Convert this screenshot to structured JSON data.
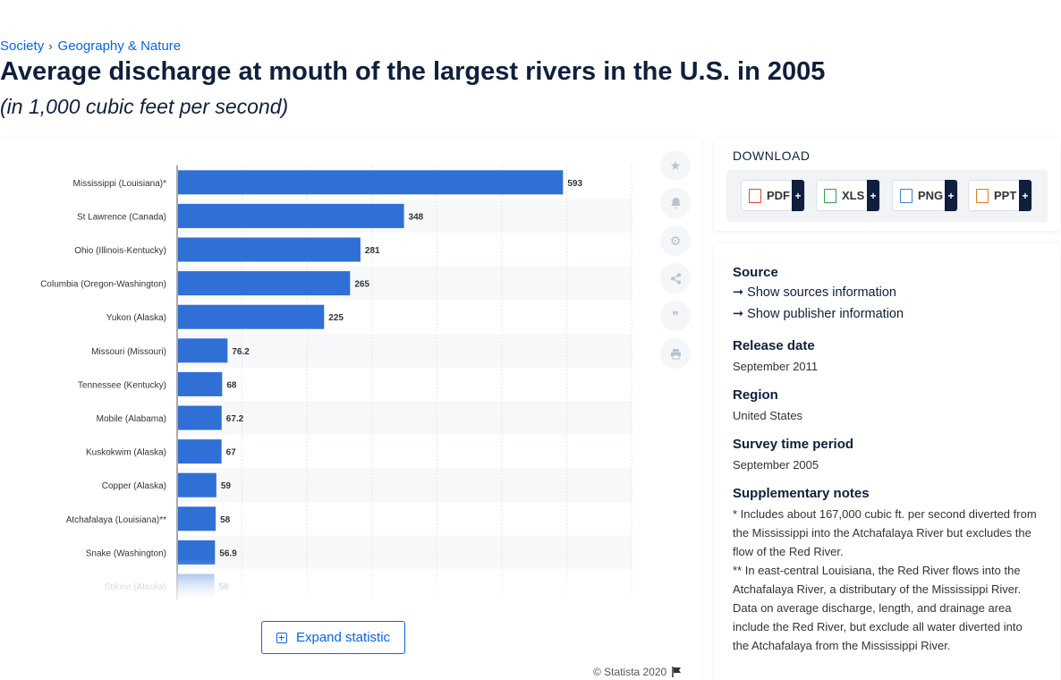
{
  "breadcrumb": {
    "items": [
      "Society",
      "Geography & Nature"
    ],
    "separator": "›"
  },
  "title": "Average discharge at mouth of the largest rivers in the U.S. in 2005",
  "subtitle": "(in 1,000 cubic feet per second)",
  "chart_data": {
    "type": "bar",
    "orientation": "horizontal",
    "categories": [
      "Mississippi (Louisiana)*",
      "St Lawrence (Canada)",
      "Ohio (Illinois-Kentucky)",
      "Columbia (Oregon-Washington)",
      "Yukon (Alaska)",
      "Missouri (Missouri)",
      "Tennessee (Kentucky)",
      "Mobile (Alabama)",
      "Kuskokwim (Alaska)",
      "Copper (Alaska)",
      "Atchafalaya (Louisiana)**",
      "Snake (Washington)",
      "Stikine (Alaska)"
    ],
    "values": [
      593,
      348,
      281,
      265,
      225,
      76.2,
      68,
      67.2,
      67,
      59,
      58,
      56.9,
      56
    ],
    "value_labels": [
      "593",
      "348",
      "281",
      "265",
      "225",
      "76.2",
      "68",
      "67.2",
      "67",
      "59",
      "58",
      "56.9",
      "56"
    ],
    "xlim": [
      0,
      700
    ],
    "grid": true,
    "bar_color": "#2f6fd6",
    "faded_last": true
  },
  "tools": {
    "icons": [
      "star-icon",
      "bell-icon",
      "gear-icon",
      "share-icon",
      "quote-icon",
      "print-icon"
    ]
  },
  "expand_label": "Expand statistic",
  "copyright": "© Statista 2020",
  "download": {
    "title": "DOWNLOAD",
    "buttons": [
      {
        "label": "PDF",
        "plus": "+",
        "color": "#e0443a"
      },
      {
        "label": "XLS",
        "plus": "+",
        "color": "#2e9b4e"
      },
      {
        "label": "PNG",
        "plus": "+",
        "color": "#3f7fd0"
      },
      {
        "label": "PPT",
        "plus": "+",
        "color": "#e07a2a"
      }
    ]
  },
  "info": {
    "source_label": "Source",
    "show_sources": "Show sources information",
    "show_publisher": "Show publisher information",
    "release_label": "Release date",
    "release_value": "September 2011",
    "region_label": "Region",
    "region_value": "United States",
    "survey_label": "Survey time period",
    "survey_value": "September 2005",
    "notes_label": "Supplementary notes",
    "note1": "* Includes about 167,000 cubic ft. per second diverted from the Mississippi into the Atchafalaya River but excludes the flow of the Red River.",
    "note2": "** In east-central Louisiana, the Red River flows into the Atchafalaya River, a distributary of the Mississippi River. Data on average discharge, length, and drainage area include the Red River, but exclude all water diverted into the Atchafalaya from the Mississippi River."
  }
}
